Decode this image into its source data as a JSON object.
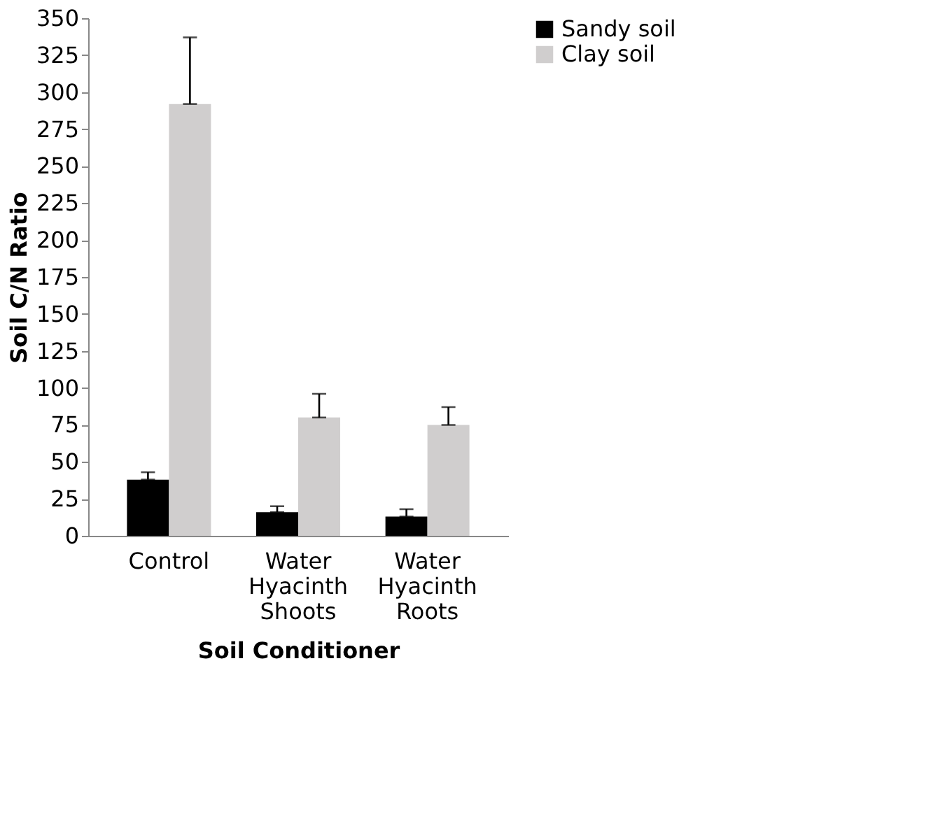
{
  "chart_data": {
    "type": "bar",
    "xlabel": "Soil Conditioner",
    "ylabel": "Soil C/N Ratio",
    "categories": [
      "Control",
      "Water Hyacinth Shoots",
      "Water Hyacinth Roots"
    ],
    "series": [
      {
        "name": "Sandy soil",
        "color": "#000000",
        "values": [
          38,
          16,
          13
        ],
        "errors": [
          [
            38,
            43
          ],
          [
            16,
            20
          ],
          [
            13,
            18
          ]
        ]
      },
      {
        "name": "Clay soil",
        "color": "#d0cece",
        "values": [
          292,
          80,
          75
        ],
        "errors": [
          [
            292,
            337
          ],
          [
            80,
            96
          ],
          [
            75,
            87
          ]
        ]
      }
    ],
    "ylim": [
      0,
      350
    ],
    "yticks": [
      0,
      25,
      50,
      75,
      100,
      125,
      150,
      175,
      200,
      225,
      250,
      275,
      300,
      325,
      350
    ],
    "grid": false,
    "legend": "right"
  }
}
